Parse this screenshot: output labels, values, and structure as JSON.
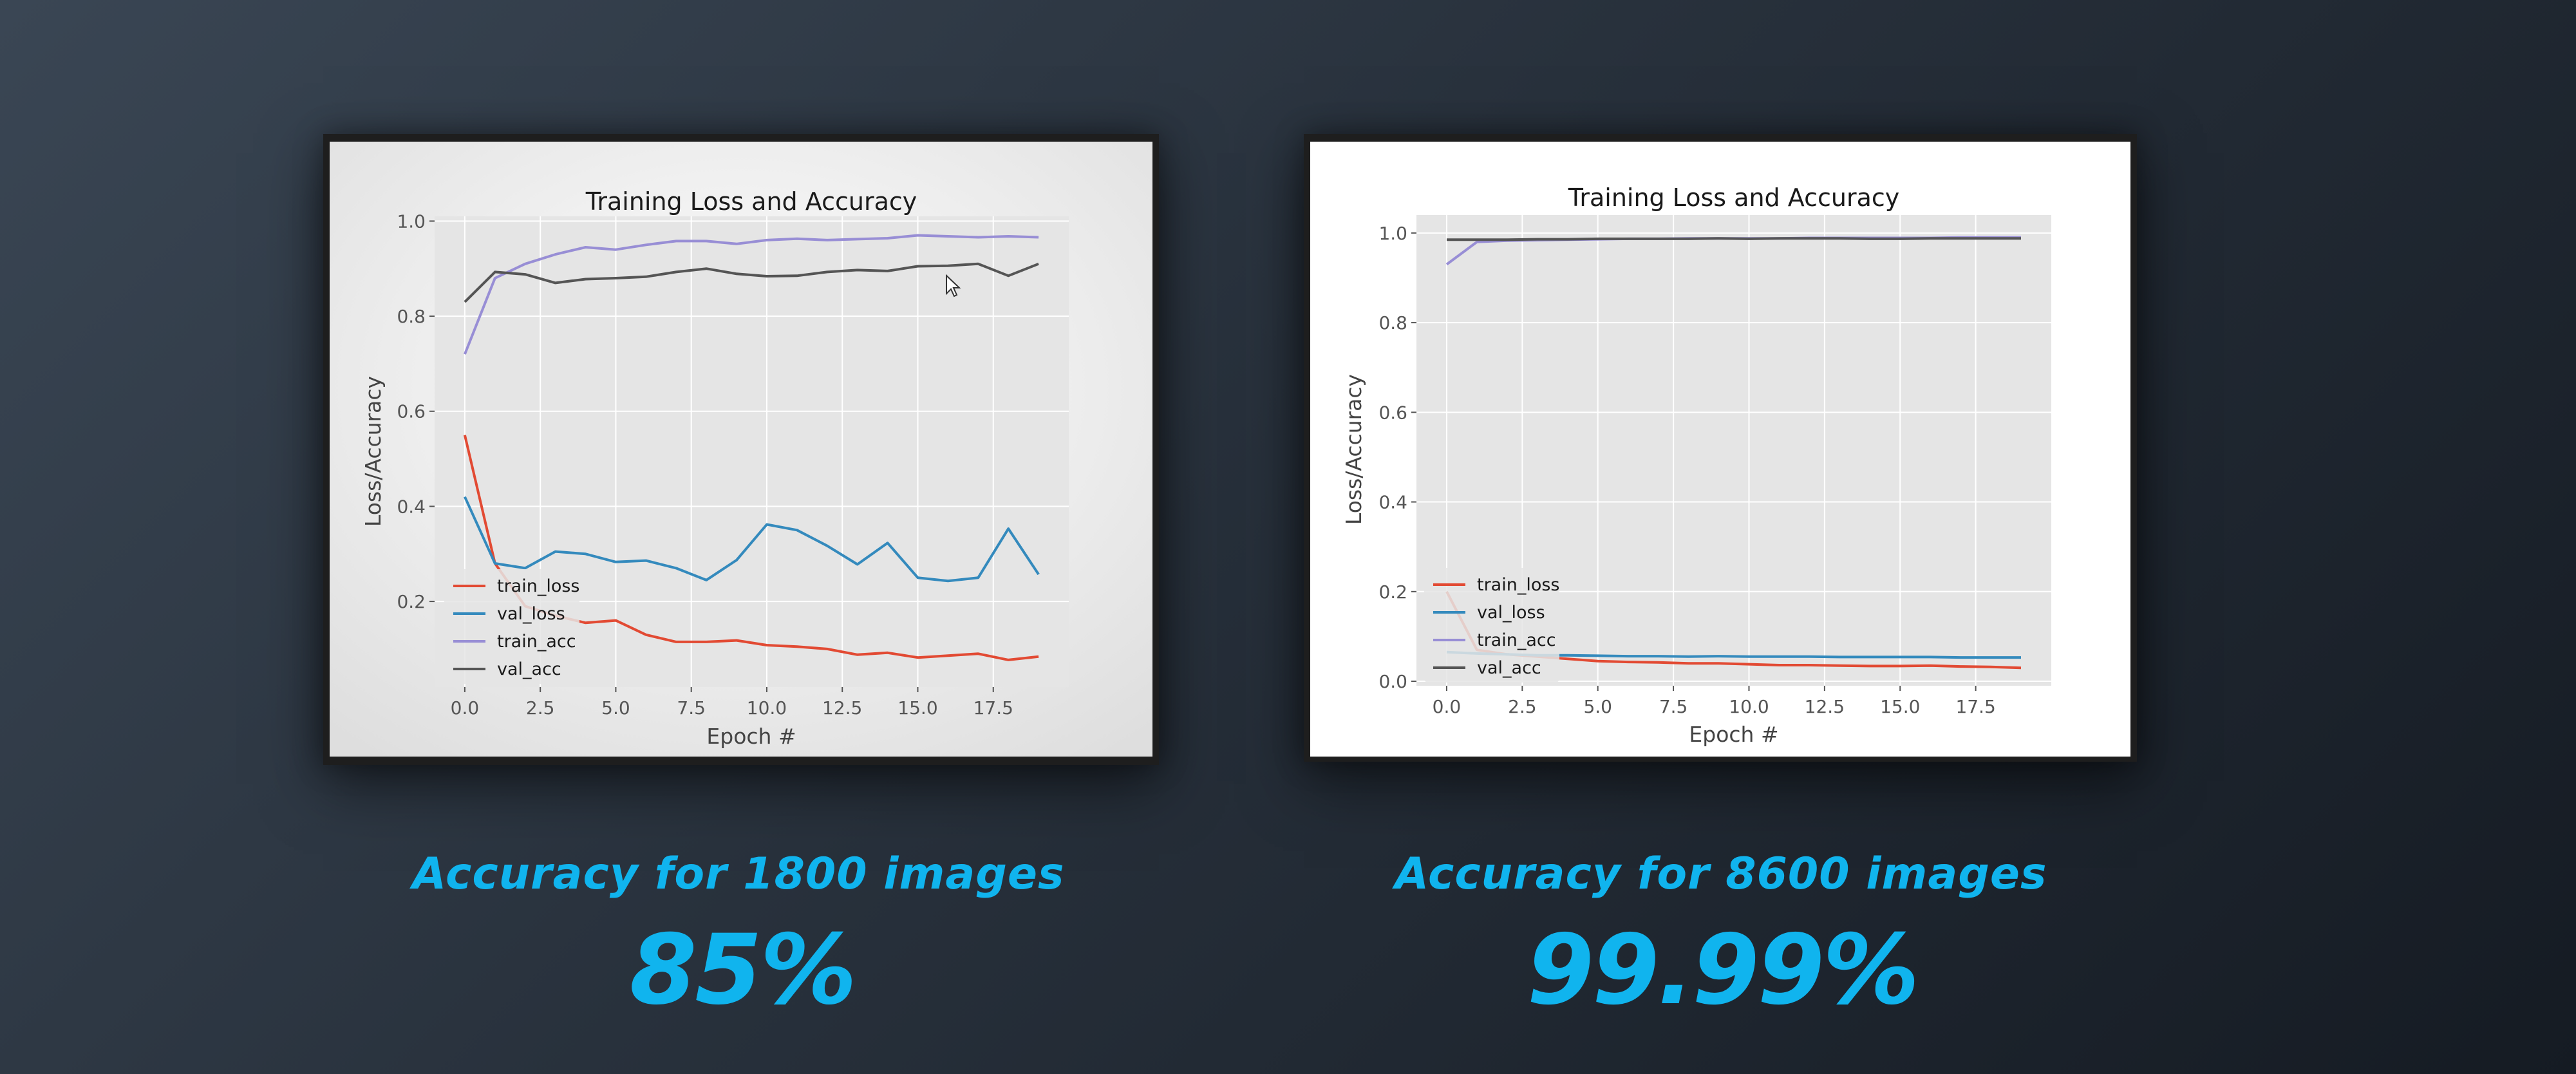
{
  "colors": {
    "train_loss": "#e24a33",
    "val_loss": "#348abd",
    "train_acc": "#988ed5",
    "val_acc": "#555555",
    "accent": "#10b4ee"
  },
  "left": {
    "caption": "Accuracy for 1800 images",
    "value": "85%"
  },
  "right": {
    "caption": "Accuracy for 8600 images",
    "value": "99.99%"
  },
  "chart_data": [
    {
      "type": "line",
      "title": "Training Loss and Accuracy",
      "xlabel": "Epoch #",
      "ylabel": "Loss/Accuracy",
      "xlim": [
        -1,
        20
      ],
      "ylim": [
        0.02,
        1.01
      ],
      "grid": true,
      "legend_position": "lower-left",
      "x_ticks": [
        "0.0",
        "2.5",
        "5.0",
        "7.5",
        "10.0",
        "12.5",
        "15.0",
        "17.5"
      ],
      "y_ticks": [
        "0.2",
        "0.4",
        "0.6",
        "0.8",
        "1.0"
      ],
      "x": [
        0,
        1,
        2,
        3,
        4,
        5,
        6,
        7,
        8,
        9,
        10,
        11,
        12,
        13,
        14,
        15,
        16,
        17,
        18,
        19
      ],
      "series": [
        {
          "name": "train_loss",
          "values": [
            0.55,
            0.28,
            0.19,
            0.17,
            0.155,
            0.16,
            0.13,
            0.115,
            0.115,
            0.118,
            0.108,
            0.105,
            0.1,
            0.088,
            0.092,
            0.082,
            0.086,
            0.09,
            0.077,
            0.084
          ]
        },
        {
          "name": "val_loss",
          "values": [
            0.42,
            0.28,
            0.27,
            0.305,
            0.3,
            0.283,
            0.286,
            0.27,
            0.245,
            0.287,
            0.362,
            0.35,
            0.317,
            0.278,
            0.323,
            0.25,
            0.243,
            0.25,
            0.353,
            0.257
          ]
        },
        {
          "name": "train_acc",
          "values": [
            0.72,
            0.88,
            0.91,
            0.93,
            0.945,
            0.94,
            0.95,
            0.958,
            0.958,
            0.952,
            0.96,
            0.963,
            0.96,
            0.962,
            0.964,
            0.97,
            0.968,
            0.966,
            0.968,
            0.966
          ]
        },
        {
          "name": "val_acc",
          "values": [
            0.83,
            0.893,
            0.888,
            0.87,
            0.878,
            0.88,
            0.883,
            0.893,
            0.9,
            0.889,
            0.884,
            0.885,
            0.893,
            0.897,
            0.895,
            0.905,
            0.906,
            0.91,
            0.885,
            0.91
          ]
        }
      ]
    },
    {
      "type": "line",
      "title": "Training Loss and Accuracy",
      "xlabel": "Epoch #",
      "ylabel": "Loss/Accuracy",
      "xlim": [
        -1,
        20
      ],
      "ylim": [
        -0.01,
        1.04
      ],
      "grid": true,
      "legend_position": "lower-left",
      "x_ticks": [
        "0.0",
        "2.5",
        "5.0",
        "7.5",
        "10.0",
        "12.5",
        "15.0",
        "17.5"
      ],
      "y_ticks": [
        "0.0",
        "0.2",
        "0.4",
        "0.6",
        "0.8",
        "1.0"
      ],
      "x": [
        0,
        1,
        2,
        3,
        4,
        5,
        6,
        7,
        8,
        9,
        10,
        11,
        12,
        13,
        14,
        15,
        16,
        17,
        18,
        19
      ],
      "series": [
        {
          "name": "train_loss",
          "values": [
            0.2,
            0.07,
            0.06,
            0.055,
            0.05,
            0.045,
            0.043,
            0.042,
            0.04,
            0.04,
            0.038,
            0.036,
            0.036,
            0.035,
            0.034,
            0.034,
            0.035,
            0.033,
            0.032,
            0.03
          ]
        },
        {
          "name": "val_loss",
          "values": [
            0.065,
            0.062,
            0.06,
            0.058,
            0.058,
            0.057,
            0.056,
            0.056,
            0.055,
            0.056,
            0.055,
            0.055,
            0.055,
            0.054,
            0.054,
            0.054,
            0.054,
            0.053,
            0.053,
            0.053
          ]
        },
        {
          "name": "train_acc",
          "values": [
            0.93,
            0.98,
            0.983,
            0.984,
            0.985,
            0.986,
            0.987,
            0.987,
            0.988,
            0.988,
            0.988,
            0.988,
            0.989,
            0.989,
            0.989,
            0.989,
            0.989,
            0.99,
            0.99,
            0.99
          ]
        },
        {
          "name": "val_acc",
          "values": [
            0.985,
            0.985,
            0.985,
            0.986,
            0.986,
            0.987,
            0.987,
            0.987,
            0.987,
            0.988,
            0.987,
            0.988,
            0.988,
            0.988,
            0.987,
            0.987,
            0.988,
            0.988,
            0.988,
            0.988
          ]
        }
      ]
    }
  ]
}
